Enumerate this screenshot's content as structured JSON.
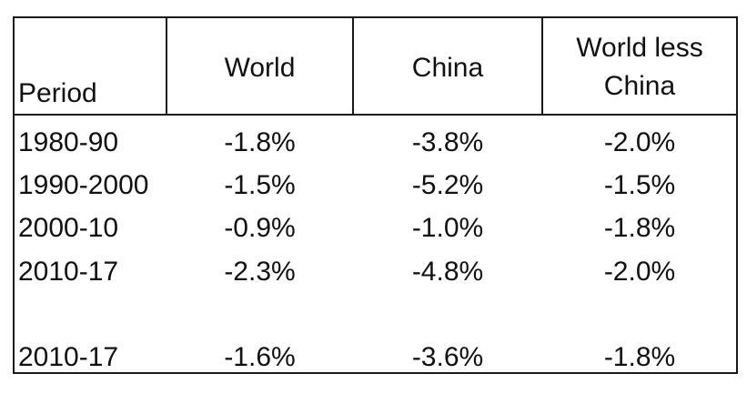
{
  "table": {
    "headers": {
      "period": "Period",
      "world": "World",
      "china": "China",
      "world_less_china": "World less China"
    },
    "rows": [
      {
        "period": "1980-90",
        "world": "-1.8%",
        "china": "-3.8%",
        "world_less_china": "-2.0%"
      },
      {
        "period": "1990-2000",
        "world": "-1.5%",
        "china": "-5.2%",
        "world_less_china": "-1.5%"
      },
      {
        "period": "2000-10",
        "world": "-0.9%",
        "china": "-1.0%",
        "world_less_china": "-1.8%"
      },
      {
        "period": "2010-17",
        "world": "-2.3%",
        "china": "-4.8%",
        "world_less_china": "-2.0%"
      },
      {
        "period": "2010-17",
        "world": "-1.6%",
        "china": "-3.6%",
        "world_less_china": "-1.8%"
      }
    ]
  }
}
